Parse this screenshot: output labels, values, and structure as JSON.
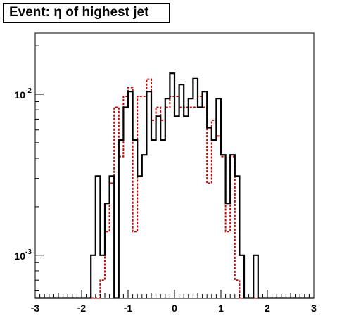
{
  "chart_data": {
    "type": "histogram",
    "title": "Event: η of highest jet",
    "xlabel": "",
    "ylabel": "",
    "xlim": [
      -3,
      3
    ],
    "ylim": [
      0.00054,
      0.024
    ],
    "y_scale": "log",
    "grid": false,
    "legend": "none",
    "x_ticks": [
      -3,
      -2,
      -1,
      0,
      1,
      2,
      3
    ],
    "x_tick_labels": [
      "-3",
      "-2",
      "-1",
      "0",
      "1",
      "2",
      "3"
    ],
    "y_ticks": [
      0.001,
      0.01
    ],
    "y_tick_labels": [
      {
        "base": "10",
        "exp": "-3"
      },
      {
        "base": "10",
        "exp": "-2"
      }
    ],
    "bin_edges": [
      -3.0,
      -2.9,
      -2.8,
      -2.7,
      -2.6,
      -2.5,
      -2.4,
      -2.3,
      -2.2,
      -2.1,
      -2.0,
      -1.9,
      -1.8,
      -1.7,
      -1.6,
      -1.5,
      -1.4,
      -1.3,
      -1.2,
      -1.1,
      -1.0,
      -0.9,
      -0.8,
      -0.7,
      -0.6,
      -0.5,
      -0.4,
      -0.3,
      -0.2,
      -0.1,
      0.0,
      0.1,
      0.2,
      0.3,
      0.4,
      0.5,
      0.6,
      0.7,
      0.8,
      0.9,
      1.0,
      1.1,
      1.2,
      1.3,
      1.4,
      1.5,
      1.6,
      1.7,
      1.8,
      1.9,
      2.0,
      2.1,
      2.2,
      2.3,
      2.4,
      2.5,
      2.6,
      2.7,
      2.8,
      2.9,
      3.0
    ],
    "series": [
      {
        "color": "#000000",
        "line_style": "solid",
        "values": [
          0,
          0,
          0,
          0,
          0,
          0,
          0,
          0,
          0,
          0,
          0,
          0,
          0.001,
          0.0031,
          0.001,
          0.0021,
          0.0031,
          0,
          0.0052,
          0.0083,
          0.0104,
          0.0052,
          0.0031,
          0.0042,
          0.0104,
          0.0052,
          0.0073,
          0.0052,
          0.0094,
          0.0135,
          0.0073,
          0.0115,
          0.0073,
          0.0094,
          0.0125,
          0.0083,
          0.0104,
          0.0062,
          0.0052,
          0.0094,
          0.0042,
          0.0021,
          0.0042,
          0.0031,
          0.001,
          0,
          0.0005,
          0.001,
          0,
          0,
          0,
          0,
          0,
          0,
          0,
          0,
          0,
          0,
          0,
          0
        ]
      },
      {
        "color": "#cc0000",
        "line_style": "dashed",
        "values": [
          0,
          0,
          0,
          0,
          0,
          0,
          0,
          0,
          0,
          0,
          0,
          0,
          0,
          0,
          0.0007,
          0.0014,
          0.0028,
          0.0083,
          0.0041,
          0.0097,
          0.011,
          0.0014,
          0.0097,
          0.0097,
          0.0124,
          0.0069,
          0.0083,
          0.0069,
          0.0083,
          0.0097,
          0.0097,
          0.0083,
          0.0083,
          0.0083,
          0.0083,
          0.0097,
          0.0083,
          0.0028,
          0.0069,
          0.0055,
          0.0041,
          0.0014,
          0.0041,
          0.0007,
          0,
          0,
          0,
          0,
          0,
          0,
          0,
          0,
          0,
          0,
          0,
          0,
          0,
          0,
          0,
          0
        ]
      }
    ]
  }
}
